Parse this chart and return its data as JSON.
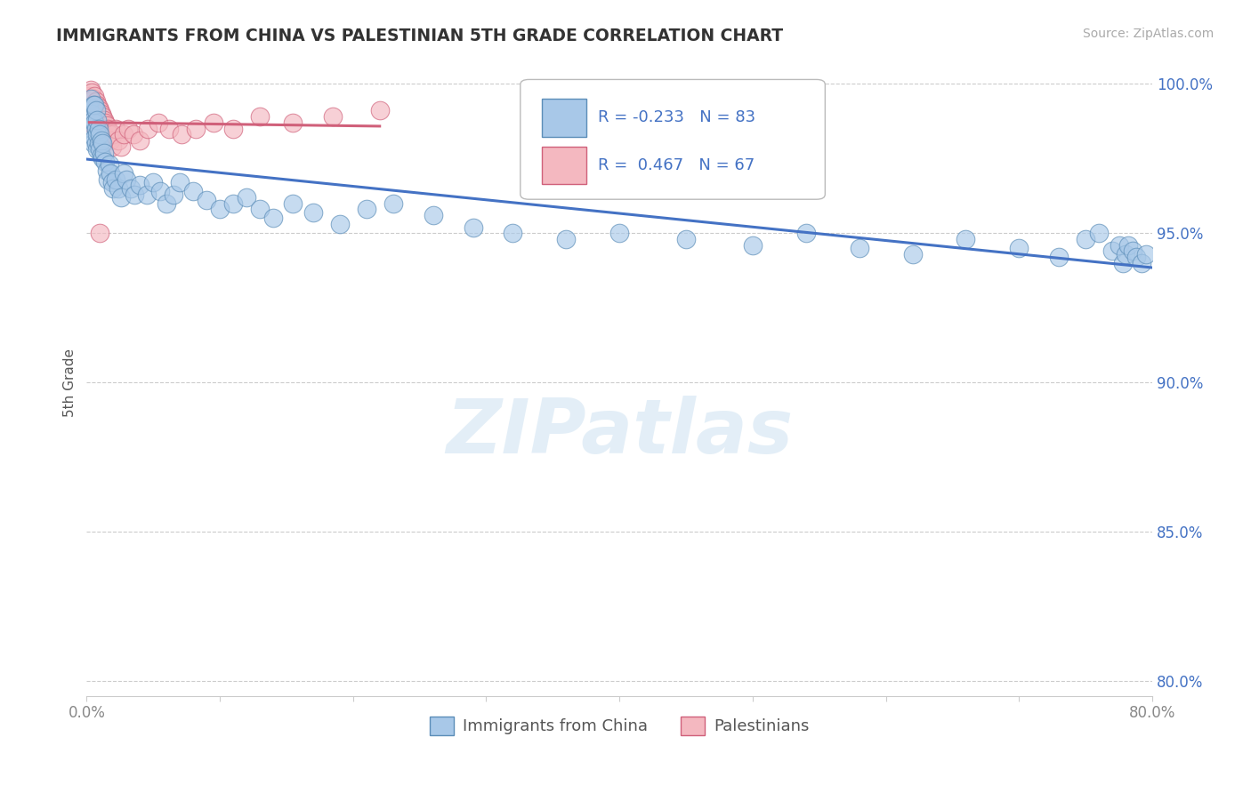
{
  "title": "IMMIGRANTS FROM CHINA VS PALESTINIAN 5TH GRADE CORRELATION CHART",
  "source": "Source: ZipAtlas.com",
  "ylabel": "5th Grade",
  "xlim": [
    0.0,
    0.8
  ],
  "ylim": [
    0.795,
    1.005
  ],
  "yticks": [
    0.8,
    0.85,
    0.9,
    0.95,
    1.0
  ],
  "ytick_labels": [
    "80.0%",
    "85.0%",
    "90.0%",
    "95.0%",
    "100.0%"
  ],
  "xticks": [
    0.0,
    0.1,
    0.2,
    0.3,
    0.4,
    0.5,
    0.6,
    0.7,
    0.8
  ],
  "xtick_labels": [
    "0.0%",
    "",
    "",
    "",
    "",
    "",
    "",
    "",
    "80.0%"
  ],
  "legend_china": "Immigrants from China",
  "legend_pal": "Palestinians",
  "R_china": -0.233,
  "N_china": 83,
  "R_pal": 0.467,
  "N_pal": 67,
  "china_color": "#a8c8e8",
  "china_edge_color": "#5b8db8",
  "china_line_color": "#4472c4",
  "pal_color": "#f4b8c0",
  "pal_edge_color": "#d0607a",
  "pal_line_color": "#d0607a",
  "watermark": "ZIPatlas",
  "background_color": "#ffffff",
  "grid_color": "#cccccc",
  "title_color": "#333333",
  "tick_color": "#4472c4",
  "china_scatter_x": [
    0.002,
    0.003,
    0.003,
    0.004,
    0.004,
    0.005,
    0.005,
    0.005,
    0.006,
    0.006,
    0.006,
    0.007,
    0.007,
    0.007,
    0.008,
    0.008,
    0.008,
    0.009,
    0.009,
    0.01,
    0.01,
    0.011,
    0.011,
    0.012,
    0.012,
    0.013,
    0.014,
    0.015,
    0.016,
    0.017,
    0.018,
    0.019,
    0.02,
    0.022,
    0.024,
    0.026,
    0.028,
    0.03,
    0.033,
    0.036,
    0.04,
    0.045,
    0.05,
    0.055,
    0.06,
    0.065,
    0.07,
    0.08,
    0.09,
    0.1,
    0.11,
    0.12,
    0.13,
    0.14,
    0.155,
    0.17,
    0.19,
    0.21,
    0.23,
    0.26,
    0.29,
    0.32,
    0.36,
    0.4,
    0.45,
    0.5,
    0.54,
    0.58,
    0.62,
    0.66,
    0.7,
    0.73,
    0.75,
    0.76,
    0.77,
    0.775,
    0.778,
    0.78,
    0.782,
    0.785,
    0.788,
    0.792,
    0.795
  ],
  "china_scatter_y": [
    0.992,
    0.988,
    0.995,
    0.985,
    0.99,
    0.98,
    0.988,
    0.993,
    0.982,
    0.987,
    0.993,
    0.98,
    0.985,
    0.991,
    0.978,
    0.983,
    0.988,
    0.98,
    0.985,
    0.978,
    0.983,
    0.976,
    0.981,
    0.975,
    0.98,
    0.977,
    0.974,
    0.971,
    0.968,
    0.973,
    0.97,
    0.967,
    0.965,
    0.968,
    0.965,
    0.962,
    0.97,
    0.968,
    0.965,
    0.963,
    0.966,
    0.963,
    0.967,
    0.964,
    0.96,
    0.963,
    0.967,
    0.964,
    0.961,
    0.958,
    0.96,
    0.962,
    0.958,
    0.955,
    0.96,
    0.957,
    0.953,
    0.958,
    0.96,
    0.956,
    0.952,
    0.95,
    0.948,
    0.95,
    0.948,
    0.946,
    0.95,
    0.945,
    0.943,
    0.948,
    0.945,
    0.942,
    0.948,
    0.95,
    0.944,
    0.946,
    0.94,
    0.943,
    0.946,
    0.944,
    0.942,
    0.94,
    0.943
  ],
  "pal_scatter_x": [
    0.002,
    0.002,
    0.003,
    0.003,
    0.003,
    0.003,
    0.004,
    0.004,
    0.004,
    0.004,
    0.005,
    0.005,
    0.005,
    0.005,
    0.005,
    0.006,
    0.006,
    0.006,
    0.006,
    0.007,
    0.007,
    0.007,
    0.007,
    0.008,
    0.008,
    0.008,
    0.008,
    0.009,
    0.009,
    0.009,
    0.01,
    0.01,
    0.01,
    0.011,
    0.011,
    0.012,
    0.012,
    0.013,
    0.013,
    0.014,
    0.014,
    0.015,
    0.015,
    0.016,
    0.017,
    0.018,
    0.019,
    0.02,
    0.022,
    0.024,
    0.026,
    0.028,
    0.031,
    0.035,
    0.04,
    0.046,
    0.054,
    0.062,
    0.071,
    0.082,
    0.095,
    0.11,
    0.13,
    0.155,
    0.185,
    0.22,
    0.01
  ],
  "pal_scatter_y": [
    0.99,
    0.996,
    0.987,
    0.993,
    0.998,
    0.994,
    0.988,
    0.993,
    0.997,
    0.991,
    0.986,
    0.991,
    0.995,
    0.988,
    0.993,
    0.987,
    0.992,
    0.996,
    0.99,
    0.985,
    0.99,
    0.994,
    0.988,
    0.984,
    0.989,
    0.993,
    0.987,
    0.983,
    0.988,
    0.992,
    0.982,
    0.987,
    0.991,
    0.985,
    0.99,
    0.984,
    0.989,
    0.983,
    0.988,
    0.982,
    0.987,
    0.981,
    0.986,
    0.985,
    0.983,
    0.981,
    0.979,
    0.983,
    0.985,
    0.981,
    0.979,
    0.983,
    0.985,
    0.983,
    0.981,
    0.985,
    0.987,
    0.985,
    0.983,
    0.985,
    0.987,
    0.985,
    0.989,
    0.987,
    0.989,
    0.991,
    0.95
  ]
}
